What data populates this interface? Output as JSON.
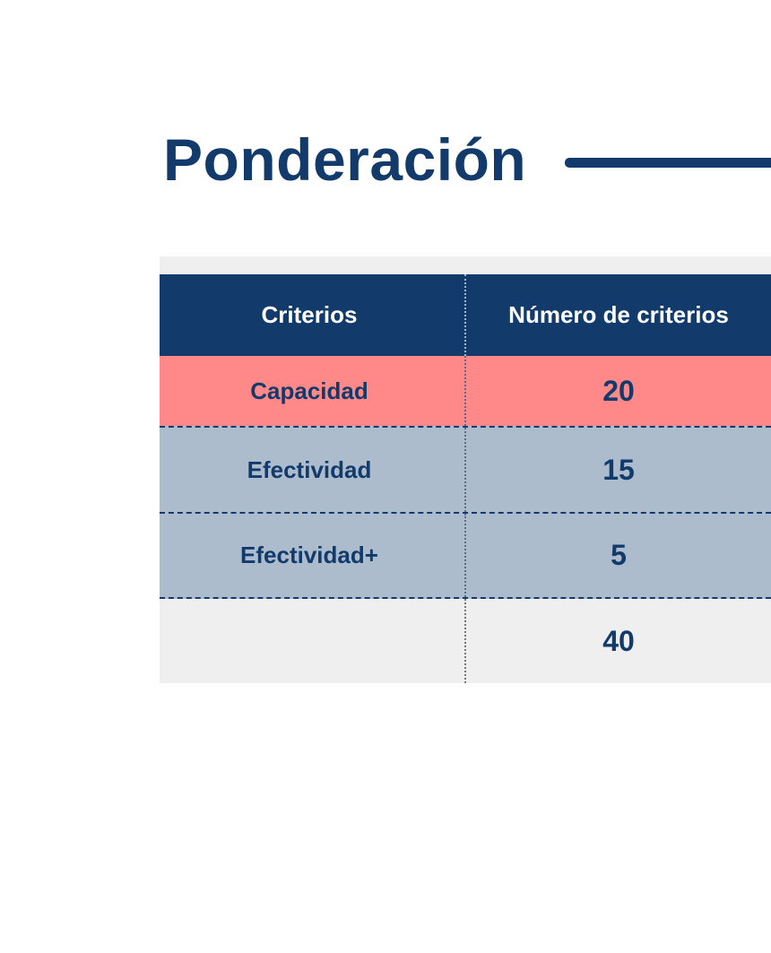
{
  "title": "Ponderación",
  "colors": {
    "primary": "#123a6b",
    "highlight_row": "#ff8888",
    "muted_row": "#adbccd",
    "panel": "#efefef"
  },
  "table": {
    "headers": [
      "Criterios",
      "Número de criterios"
    ],
    "rows": [
      {
        "criterio": "Capacidad",
        "numero": "20"
      },
      {
        "criterio": "Efectividad",
        "numero": "15"
      },
      {
        "criterio": "Efectividad+",
        "numero": "5"
      }
    ],
    "total": {
      "label": "",
      "numero": "40"
    }
  }
}
